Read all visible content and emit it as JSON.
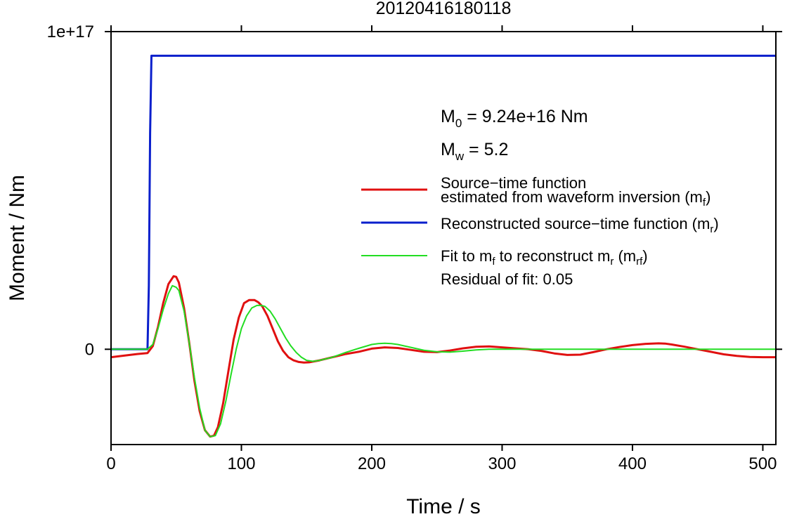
{
  "chart_data": {
    "type": "line",
    "title": "20120416180118",
    "xlabel": "Time / s",
    "ylabel": "Moment / Nm",
    "xlim": [
      0,
      510
    ],
    "ylim": [
      -3e+16,
      1e+17
    ],
    "x_ticks": [
      0,
      100,
      200,
      300,
      400,
      500
    ],
    "x_tick_labels": [
      "0",
      "100",
      "200",
      "300",
      "400",
      "500"
    ],
    "y_ticks": [
      0,
      1e+17
    ],
    "y_tick_labels": [
      "0",
      "1e+17"
    ],
    "grid": false,
    "legend_position": "right",
    "annotations": {
      "m0": {
        "lead": "M",
        "sub": "0",
        "rest": " = 9.24e+16 Nm"
      },
      "mw": {
        "lead": "M",
        "sub": "w",
        "rest": " = 5.2"
      },
      "residual": "Residual of fit: 0.05"
    },
    "legend": [
      {
        "series": "red",
        "line1": "Source−time function",
        "line2_lead": "estimated from waveform inversion (m",
        "line2_sub": "f",
        "line2_tail": ")"
      },
      {
        "series": "blue",
        "line1_lead": "Reconstructed source−time function (m",
        "line1_sub": "r",
        "line1_tail": ")"
      },
      {
        "series": "green",
        "p1": "Fit to m",
        "s1": "f",
        "p2": " to reconstruct m",
        "s2": "r",
        "p3": " (m",
        "s3": "rf",
        "p4": ")"
      }
    ],
    "series": [
      {
        "key": "blue",
        "color": "#0a1fcc",
        "x": [
          0,
          28,
          29,
          30,
          31,
          510
        ],
        "y": [
          0,
          0,
          2e+16,
          6.8e+16,
          9.24e+16,
          9.24e+16
        ]
      },
      {
        "key": "red",
        "color": "#e01010",
        "x": [
          0,
          10,
          20,
          28,
          32,
          36,
          40,
          44,
          48,
          50,
          52,
          56,
          60,
          64,
          68,
          72,
          76,
          79,
          82,
          86,
          90,
          94,
          98,
          102,
          106,
          110,
          113,
          116,
          120,
          124,
          128,
          132,
          136,
          140,
          144,
          148,
          152,
          160,
          170,
          180,
          190,
          200,
          210,
          220,
          230,
          240,
          250,
          260,
          270,
          280,
          290,
          300,
          310,
          320,
          330,
          340,
          350,
          360,
          370,
          380,
          390,
          400,
          410,
          420,
          425,
          430,
          440,
          450,
          460,
          470,
          480,
          490,
          500,
          510
        ],
        "y": [
          -2500000000000000.0,
          -2000000000000000.0,
          -1500000000000000.0,
          -1200000000000000.0,
          1000000000000000.0,
          7000000000000000.0,
          1.45e+16,
          2.05e+16,
          2.3e+16,
          2.28e+16,
          2.1e+16,
          1.3e+16,
          2000000000000000.0,
          -1e+16,
          -1.95e+16,
          -2.55e+16,
          -2.75e+16,
          -2.72e+16,
          -2.45e+16,
          -1.7e+16,
          -7000000000000000.0,
          3000000000000000.0,
          1e+16,
          1.45e+16,
          1.55e+16,
          1.55e+16,
          1.48e+16,
          1.35e+16,
          1.05e+16,
          6500000000000000.0,
          2500000000000000.0,
          -500000000000000.0,
          -2500000000000000.0,
          -3500000000000000.0,
          -4000000000000000.0,
          -4200000000000000.0,
          -4100000000000000.0,
          -3500000000000000.0,
          -2500000000000000.0,
          -1500000000000000.0,
          -800000000000000.0,
          200000000000000.0,
          600000000000000.0,
          400000000000000.0,
          -200000000000000.0,
          -800000000000000.0,
          -900000000000000.0,
          -400000000000000.0,
          300000000000000.0,
          800000000000000.0,
          900000000000000.0,
          600000000000000.0,
          300000000000000.0,
          0,
          -500000000000000.0,
          -1300000000000000.0,
          -1800000000000000.0,
          -1700000000000000.0,
          -900000000000000.0,
          0,
          700000000000000.0,
          1300000000000000.0,
          1700000000000000.0,
          1850000000000000.0,
          1800000000000000.0,
          1500000000000000.0,
          800000000000000.0,
          0,
          -800000000000000.0,
          -1600000000000000.0,
          -2100000000000000.0,
          -2400000000000000.0,
          -2500000000000000.0,
          -2500000000000000.0
        ]
      },
      {
        "key": "green",
        "color": "#22dd22",
        "x": [
          0,
          28,
          32,
          36,
          40,
          44,
          47,
          50,
          52,
          56,
          60,
          64,
          68,
          72,
          76,
          80,
          84,
          88,
          92,
          96,
          100,
          104,
          108,
          112,
          115,
          118,
          122,
          126,
          130,
          134,
          138,
          142,
          146,
          150,
          155,
          160,
          170,
          180,
          190,
          200,
          205,
          210,
          215,
          220,
          230,
          240,
          250,
          260,
          270,
          280,
          290,
          300,
          320,
          340,
          360,
          380,
          400,
          420,
          440,
          460,
          480,
          500,
          510
        ],
        "y": [
          0,
          0,
          1500000000000000.0,
          6500000000000000.0,
          1.25e+16,
          1.75e+16,
          2e+16,
          1.95e+16,
          1.85e+16,
          1.2e+16,
          2000000000000000.0,
          -9000000000000000.0,
          -1.85e+16,
          -2.55e+16,
          -2.75e+16,
          -2.72e+16,
          -2.35e+16,
          -1.65e+16,
          -8000000000000000.0,
          0,
          6500000000000000.0,
          1.05e+16,
          1.3e+16,
          1.38e+16,
          1.38e+16,
          1.35e+16,
          1.2e+16,
          9500000000000000.0,
          6500000000000000.0,
          3500000000000000.0,
          1000000000000000.0,
          -1000000000000000.0,
          -2500000000000000.0,
          -3500000000000000.0,
          -3800000000000000.0,
          -3500000000000000.0,
          -2500000000000000.0,
          -1000000000000000.0,
          300000000000000.0,
          1500000000000000.0,
          1800000000000000.0,
          1900000000000000.0,
          1800000000000000.0,
          1500000000000000.0,
          600000000000000.0,
          -300000000000000.0,
          -800000000000000.0,
          -900000000000000.0,
          -600000000000000.0,
          -200000000000000.0,
          0,
          0,
          0,
          0,
          0,
          0,
          0,
          0,
          0,
          0,
          0,
          0,
          0
        ]
      }
    ]
  }
}
